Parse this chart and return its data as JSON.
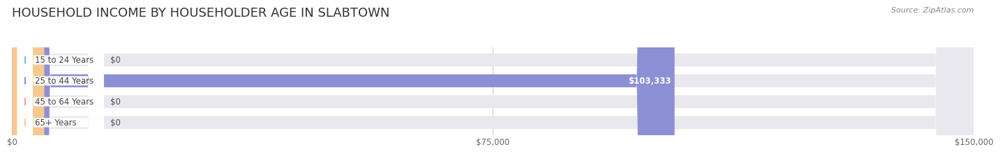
{
  "title": "HOUSEHOLD INCOME BY HOUSEHOLDER AGE IN SLABTOWN",
  "source_text": "Source: ZipAtlas.com",
  "categories": [
    "15 to 24 Years",
    "25 to 44 Years",
    "45 to 64 Years",
    "65+ Years"
  ],
  "values": [
    0,
    103333,
    0,
    0
  ],
  "bar_colors": [
    "#5eccc8",
    "#8c8fd4",
    "#f599b0",
    "#f5c990"
  ],
  "bar_bg_color": "#e8e8ee",
  "label_colors": [
    "#555555",
    "#ffffff",
    "#555555",
    "#555555"
  ],
  "value_labels": [
    "$0",
    "$103,333",
    "$0",
    "$0"
  ],
  "xlim": [
    0,
    150000
  ],
  "xticks": [
    0,
    75000,
    150000
  ],
  "xtick_labels": [
    "$0",
    "$75,000",
    "$150,000"
  ],
  "background_color": "#ffffff",
  "title_fontsize": 13,
  "bar_height": 0.62,
  "figsize": [
    14.06,
    2.33
  ]
}
